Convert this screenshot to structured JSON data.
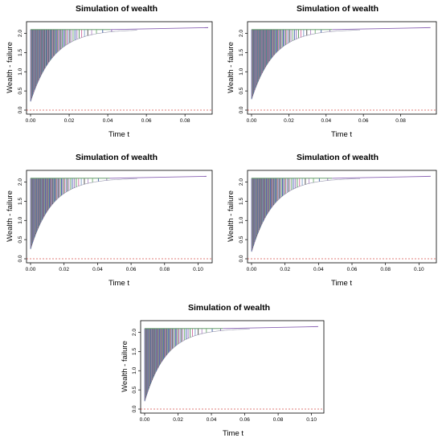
{
  "chart_data": [
    {
      "type": "line",
      "title": "Simulation of wealth",
      "xlabel": "Time t",
      "ylabel": "Wealth - failure",
      "xlim": [
        0,
        0.092
      ],
      "ylim": [
        0,
        2.2
      ],
      "xticks": [
        0.0,
        0.02,
        0.04,
        0.06,
        0.08
      ],
      "xtick_labels": [
        "0.00",
        "0.02",
        "0.04",
        "0.06",
        "0.08"
      ],
      "yticks": [
        0.0,
        0.5,
        1.0,
        1.5,
        2.0
      ],
      "ytick_labels": [
        "0.0",
        "0.5",
        "1.0",
        "1.5",
        "2.0"
      ],
      "cap": 2.1,
      "final_value": 2.15,
      "x_end": 0.092,
      "min_value": 0.22,
      "decay": 0.012,
      "reference_line": 0,
      "grid": false,
      "series_colors": [
        "#3b5fa8",
        "#8a63b4",
        "#4f8f57",
        "#d06aa0",
        "#7a9cc6",
        "#444444",
        "#b48ac8",
        "#6fae6f"
      ]
    },
    {
      "type": "line",
      "title": "Simulation of wealth",
      "xlabel": "Time t",
      "ylabel": "Wealth - failure",
      "xlim": [
        0,
        0.097
      ],
      "ylim": [
        0,
        2.2
      ],
      "xticks": [
        0.0,
        0.02,
        0.04,
        0.06,
        0.08
      ],
      "xtick_labels": [
        "0.00",
        "0.02",
        "0.04",
        "0.06",
        "0.08"
      ],
      "yticks": [
        0.0,
        0.5,
        1.0,
        1.5,
        2.0
      ],
      "ytick_labels": [
        "0.0",
        "0.5",
        "1.0",
        "1.5",
        "2.0"
      ],
      "cap": 2.1,
      "final_value": 2.15,
      "x_end": 0.096,
      "min_value": 0.28,
      "decay": 0.012,
      "reference_line": 0,
      "grid": false,
      "series_colors": [
        "#3b5fa8",
        "#8a63b4",
        "#4f8f57",
        "#d06aa0",
        "#7a9cc6",
        "#444444",
        "#b48ac8",
        "#6fae6f"
      ]
    },
    {
      "type": "line",
      "title": "Simulation of wealth",
      "xlabel": "Time t",
      "ylabel": "Wealth - failure",
      "xlim": [
        0,
        0.106
      ],
      "ylim": [
        0,
        2.2
      ],
      "xticks": [
        0.0,
        0.02,
        0.04,
        0.06,
        0.08,
        0.1
      ],
      "xtick_labels": [
        "0.00",
        "0.02",
        "0.04",
        "0.06",
        "0.08",
        "0.10"
      ],
      "yticks": [
        0.0,
        0.5,
        1.0,
        1.5,
        2.0
      ],
      "ytick_labels": [
        "0.0",
        "0.5",
        "1.0",
        "1.5",
        "2.0"
      ],
      "cap": 2.1,
      "final_value": 2.15,
      "x_end": 0.105,
      "min_value": 0.25,
      "decay": 0.013,
      "reference_line": 0,
      "grid": false,
      "series_colors": [
        "#3b5fa8",
        "#8a63b4",
        "#4f8f57",
        "#d06aa0",
        "#7a9cc6",
        "#444444",
        "#b48ac8",
        "#6fae6f"
      ]
    },
    {
      "type": "line",
      "title": "Simulation of wealth",
      "xlabel": "Time t",
      "ylabel": "Wealth - failure",
      "xlim": [
        0,
        0.108
      ],
      "ylim": [
        0,
        2.2
      ],
      "xticks": [
        0.0,
        0.02,
        0.04,
        0.06,
        0.08,
        0.1
      ],
      "xtick_labels": [
        "0.00",
        "0.02",
        "0.04",
        "0.06",
        "0.08",
        "0.10"
      ],
      "yticks": [
        0.0,
        0.5,
        1.0,
        1.5,
        2.0
      ],
      "ytick_labels": [
        "0.0",
        "0.5",
        "1.0",
        "1.5",
        "2.0"
      ],
      "cap": 2.1,
      "final_value": 2.15,
      "x_end": 0.107,
      "min_value": 0.18,
      "decay": 0.013,
      "reference_line": 0,
      "grid": false,
      "series_colors": [
        "#3b5fa8",
        "#8a63b4",
        "#4f8f57",
        "#d06aa0",
        "#7a9cc6",
        "#444444",
        "#b48ac8",
        "#6fae6f"
      ]
    },
    {
      "type": "line",
      "title": "Simulation of wealth",
      "xlabel": "Time t",
      "ylabel": "Wealth - failure",
      "xlim": [
        0,
        0.105
      ],
      "ylim": [
        0,
        2.2
      ],
      "xticks": [
        0.0,
        0.02,
        0.04,
        0.06,
        0.08,
        0.1
      ],
      "xtick_labels": [
        "0.00",
        "0.02",
        "0.04",
        "0.06",
        "0.08",
        "0.10"
      ],
      "yticks": [
        0.0,
        0.5,
        1.0,
        1.5,
        2.0
      ],
      "ytick_labels": [
        "0.0",
        "0.5",
        "1.0",
        "1.5",
        "2.0"
      ],
      "cap": 2.1,
      "final_value": 2.15,
      "x_end": 0.104,
      "min_value": 0.2,
      "decay": 0.013,
      "reference_line": 0,
      "grid": false,
      "series_colors": [
        "#3b5fa8",
        "#8a63b4",
        "#4f8f57",
        "#d06aa0",
        "#7a9cc6",
        "#444444",
        "#b48ac8",
        "#6fae6f"
      ]
    }
  ]
}
